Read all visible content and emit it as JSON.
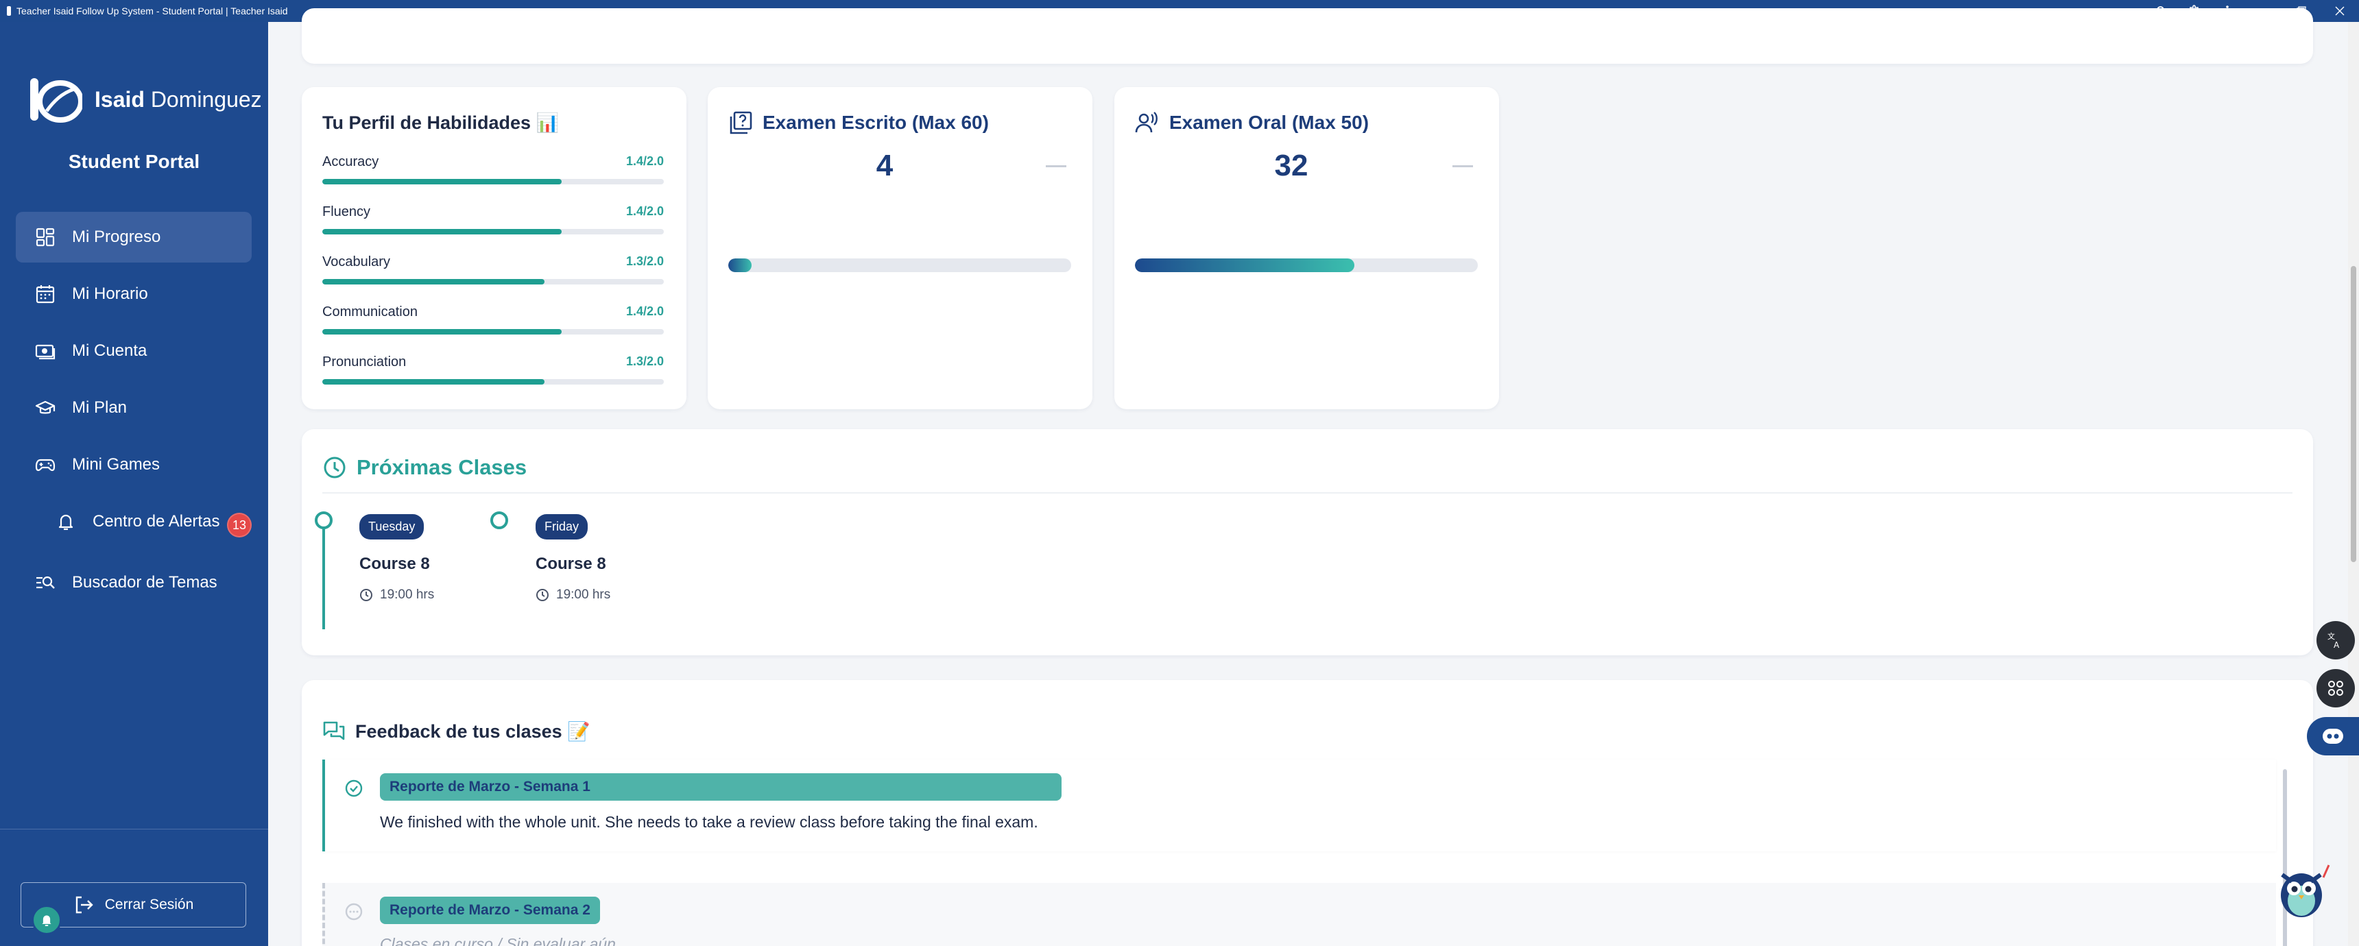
{
  "window": {
    "title": "Teacher Isaid Follow Up System - Student Portal | Teacher Isaid"
  },
  "sidebar": {
    "brand_first": "Isaid",
    "brand_last": "Dominguez",
    "portal_title": "Student Portal",
    "items": [
      {
        "label": "Mi Progreso",
        "icon": "dashboard-icon",
        "active": true
      },
      {
        "label": "Mi Horario",
        "icon": "calendar-icon"
      },
      {
        "label": "Mi Cuenta",
        "icon": "money-icon"
      },
      {
        "label": "Mi Plan",
        "icon": "graduation-cap-icon"
      },
      {
        "label": "Mini Games",
        "icon": "gamepad-icon"
      },
      {
        "label": "Centro de Alertas",
        "icon": "bell-icon",
        "badge": "13"
      },
      {
        "label": "Buscador de Temas",
        "icon": "search-list-icon"
      }
    ],
    "logout_label": "Cerrar Sesión"
  },
  "skills": {
    "title": "Tu Perfil de Habilidades 📊",
    "items": [
      {
        "label": "Accuracy",
        "value": "1.4/2.0",
        "fraction": 0.7
      },
      {
        "label": "Fluency",
        "value": "1.4/2.0",
        "fraction": 0.7
      },
      {
        "label": "Vocabulary",
        "value": "1.3/2.0",
        "fraction": 0.65
      },
      {
        "label": "Communication",
        "value": "1.4/2.0",
        "fraction": 0.7
      },
      {
        "label": "Pronunciation",
        "value": "1.3/2.0",
        "fraction": 0.65
      }
    ]
  },
  "exams": {
    "written": {
      "title": "Examen Escrito (Max 60)",
      "score": "4",
      "fraction": 0.067
    },
    "oral": {
      "title": "Examen Oral (Max 50)",
      "score": "32",
      "fraction": 0.64
    }
  },
  "upcoming": {
    "title": "Próximas Clases",
    "classes": [
      {
        "day": "Tuesday",
        "name": "Course 8",
        "time": "19:00 hrs"
      },
      {
        "day": "Friday",
        "name": "Course 8",
        "time": "19:00 hrs"
      }
    ]
  },
  "feedback": {
    "title": "Feedback de tus clases 📝",
    "items": [
      {
        "tag": "Reporte de Marzo - Semana 1",
        "text": "We finished with the whole unit. She needs to take a review class before taking the final exam.",
        "status": "done"
      },
      {
        "tag": "Reporte de Marzo - Semana 2",
        "text": "Clases en curso / Sin evaluar aún.",
        "status": "pending"
      }
    ]
  },
  "colors": {
    "sidebar": "#1e4a8f",
    "accent": "#2aa198",
    "navy": "#1d3d7a",
    "badge": "#e54848"
  }
}
